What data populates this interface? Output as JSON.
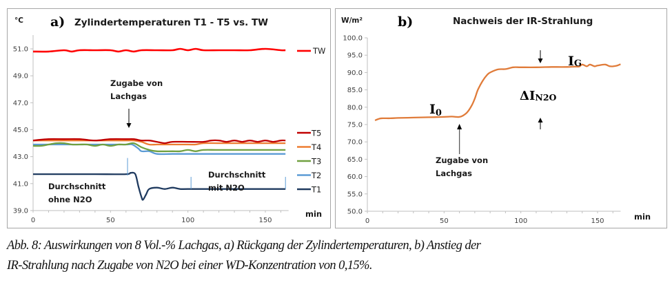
{
  "chart_data": [
    {
      "id": "a",
      "type": "line",
      "panel_label": "a)",
      "title": "Zylindertemperaturen T1 - T5 vs. TW",
      "ylabel": "°C",
      "xlabel": "min",
      "xlim": [
        0,
        165
      ],
      "ylim": [
        39.0,
        52.0
      ],
      "xticks": [
        0,
        50,
        100,
        150
      ],
      "yticks": [
        39.0,
        41.0,
        43.0,
        45.0,
        47.0,
        49.0,
        51.0
      ],
      "ytick_labels": [
        "39.0",
        "41.0",
        "43.0",
        "45.0",
        "47.0",
        "49.0",
        "51.0"
      ],
      "xtick_labels": [
        "0",
        "50",
        "100",
        "150"
      ],
      "grid": false,
      "legend_position": "right",
      "series": [
        {
          "name": "TW",
          "color": "#ff0000",
          "x": [
            0,
            10,
            20,
            25,
            30,
            40,
            50,
            55,
            60,
            65,
            70,
            80,
            90,
            95,
            100,
            105,
            110,
            120,
            130,
            140,
            150,
            160,
            163
          ],
          "values": [
            50.8,
            50.8,
            50.9,
            50.8,
            50.9,
            50.9,
            50.9,
            50.8,
            50.9,
            50.8,
            50.9,
            50.9,
            50.9,
            51.0,
            50.9,
            51.0,
            50.9,
            50.9,
            50.9,
            50.9,
            51.0,
            50.9,
            50.9
          ]
        },
        {
          "name": "T5",
          "color": "#c00000",
          "x": [
            0,
            10,
            20,
            30,
            40,
            50,
            60,
            65,
            70,
            75,
            80,
            85,
            90,
            100,
            110,
            115,
            120,
            125,
            130,
            135,
            140,
            145,
            150,
            155,
            160,
            163
          ],
          "values": [
            44.2,
            44.3,
            44.3,
            44.3,
            44.2,
            44.3,
            44.3,
            44.3,
            44.2,
            44.2,
            44.1,
            44.0,
            44.1,
            44.1,
            44.1,
            44.2,
            44.2,
            44.1,
            44.2,
            44.1,
            44.2,
            44.1,
            44.2,
            44.1,
            44.2,
            44.2
          ]
        },
        {
          "name": "T4",
          "color": "#ed7d31",
          "x": [
            0,
            20,
            40,
            60,
            65,
            70,
            75,
            80,
            90,
            100,
            105,
            110,
            120,
            140,
            163
          ],
          "values": [
            44.2,
            44.2,
            44.2,
            44.2,
            44.2,
            44.1,
            43.9,
            43.9,
            43.9,
            43.9,
            43.9,
            44.0,
            44.0,
            44.0,
            44.0
          ]
        },
        {
          "name": "T3",
          "color": "#70a040",
          "x": [
            0,
            5,
            10,
            15,
            20,
            25,
            30,
            35,
            40,
            45,
            50,
            55,
            60,
            65,
            70,
            75,
            80,
            90,
            95,
            100,
            105,
            110,
            120,
            140,
            163
          ],
          "values": [
            43.8,
            43.8,
            43.9,
            44.0,
            44.0,
            43.9,
            43.9,
            43.9,
            43.8,
            43.9,
            43.8,
            43.9,
            43.9,
            44.0,
            43.7,
            43.5,
            43.4,
            43.4,
            43.4,
            43.5,
            43.4,
            43.5,
            43.5,
            43.5,
            43.5
          ]
        },
        {
          "name": "T2",
          "color": "#5b9bd5",
          "x": [
            0,
            20,
            40,
            60,
            64,
            68,
            70,
            75,
            80,
            90,
            100,
            120,
            163
          ],
          "values": [
            43.9,
            43.9,
            43.9,
            43.9,
            43.9,
            43.6,
            43.4,
            43.4,
            43.2,
            43.2,
            43.2,
            43.2,
            43.2
          ]
        },
        {
          "name": "T1",
          "color": "#1f3a5f",
          "x": [
            0,
            20,
            40,
            60,
            63,
            66,
            68,
            70,
            71,
            73,
            75,
            80,
            85,
            90,
            95,
            100,
            120,
            140,
            163
          ],
          "values": [
            41.7,
            41.7,
            41.7,
            41.7,
            41.8,
            41.7,
            40.8,
            40.0,
            39.8,
            40.2,
            40.6,
            40.7,
            40.6,
            40.7,
            40.6,
            40.6,
            40.6,
            40.6,
            40.6
          ]
        }
      ],
      "annotations": [
        {
          "text": "Zugabe von\nLachgas",
          "lines": [
            "Zugabe von",
            "Lachgas"
          ],
          "x": 62,
          "arrow": "down"
        },
        {
          "text": "Durchschnitt\nohne N2O",
          "lines": [
            "Durchschnitt",
            "ohne N2O"
          ]
        },
        {
          "text": "Durchschnitt\nmit N2O",
          "lines": [
            "Durchschnitt",
            "mit N2O"
          ]
        }
      ],
      "range_markers_x": [
        61,
        102,
        163
      ]
    },
    {
      "id": "b",
      "type": "line",
      "panel_label": "b)",
      "title": "Nachweis der IR-Strahlung",
      "ylabel": "W/m²",
      "xlabel": "min",
      "xlim": [
        0,
        165
      ],
      "ylim": [
        50.0,
        100.0
      ],
      "xticks": [
        0,
        50,
        100,
        150
      ],
      "yticks": [
        50.0,
        55.0,
        60.0,
        65.0,
        70.0,
        75.0,
        80.0,
        85.0,
        90.0,
        95.0,
        100.0
      ],
      "ytick_labels": [
        "50.0",
        "55.0",
        "60.0",
        "65.0",
        "70.0",
        "75.0",
        "80.0",
        "85.0",
        "90.0",
        "95.0",
        "100.0"
      ],
      "xtick_labels": [
        "0",
        "50",
        "100",
        "150"
      ],
      "grid": false,
      "legend_position": "none",
      "series": [
        {
          "name": "IR-Strahlung",
          "color": "#e07b39",
          "x": [
            5,
            8,
            10,
            15,
            20,
            30,
            40,
            50,
            55,
            58,
            60,
            62,
            65,
            68,
            70,
            72,
            75,
            78,
            80,
            85,
            90,
            95,
            100,
            110,
            120,
            130,
            135,
            138,
            140,
            143,
            145,
            148,
            150,
            155,
            158,
            162,
            165
          ],
          "values": [
            76.2,
            76.7,
            76.8,
            76.8,
            76.9,
            77.0,
            77.1,
            77.2,
            77.3,
            77.2,
            77.2,
            77.5,
            78.5,
            80.5,
            82.5,
            85.0,
            87.5,
            89.3,
            90.0,
            90.9,
            91.0,
            91.5,
            91.5,
            91.5,
            91.6,
            91.6,
            91.7,
            91.7,
            92.3,
            91.8,
            92.3,
            91.8,
            92.0,
            92.3,
            91.8,
            91.9,
            92.4
          ]
        }
      ],
      "annotations": [
        {
          "text": "I0",
          "main": "I",
          "sub": "0"
        },
        {
          "text": "IG",
          "main": "I",
          "sub": "G",
          "arrow": "down"
        },
        {
          "text": "ΔIN2O",
          "main": "ΔI",
          "sub": "N2O",
          "arrow": "up"
        },
        {
          "text": "Zugabe von\nLachgas",
          "lines": [
            "Zugabe von",
            "Lachgas"
          ],
          "x": 60,
          "arrow": "up"
        }
      ]
    }
  ],
  "caption": {
    "line1": "Abb. 8: Auswirkungen von 8 Vol.-% Lachgas, a) Rückgang der Zylindertemperaturen, b) Anstieg der",
    "line2": "IR-Strahlung nach Zugabe von N2O bei einer WD-Konzentration von 0,15%."
  }
}
